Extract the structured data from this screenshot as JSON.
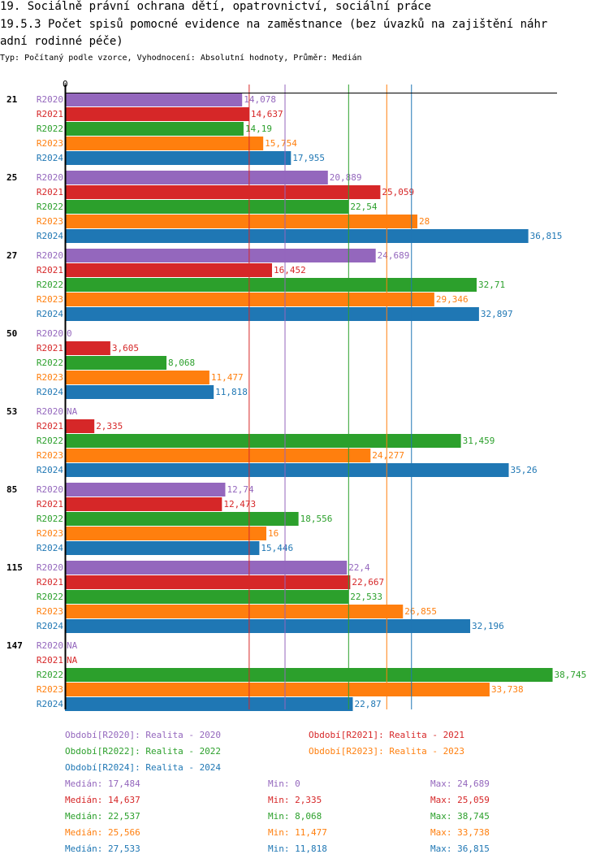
{
  "title_line1": "19. Sociálně právní ochrana dětí, opatrovnictví, sociální práce",
  "title_line2": "19.5.3 Počet spisů pomocné evidence na zaměstnance  (bez úvazků na zajištění náhr",
  "title_line3": "adní rodinné péče)",
  "subtitle": "Typ: Počítaný podle vzorce, Vyhodnocení: Absolutní hodnoty, Průměr: Medián",
  "chart_data": {
    "type": "bar",
    "orientation": "horizontal",
    "x_tick_labels": [
      "0"
    ],
    "xlim": [
      0,
      39
    ],
    "categories": [
      "21",
      "25",
      "27",
      "50",
      "53",
      "85",
      "115",
      "147"
    ],
    "series": [
      {
        "name": "R2020",
        "color": "#9467bd",
        "values": [
          14.078,
          20.889,
          24.689,
          0,
          null,
          12.74,
          22.4,
          null
        ],
        "labels": [
          "14,078",
          "20,889",
          "24,689",
          "0",
          "NA",
          "12,74",
          "22,4",
          "NA"
        ]
      },
      {
        "name": "R2021",
        "color": "#d62728",
        "values": [
          14.637,
          25.059,
          16.452,
          3.605,
          2.335,
          12.473,
          22.667,
          null
        ],
        "labels": [
          "14,637",
          "25,059",
          "16,452",
          "3,605",
          "2,335",
          "12,473",
          "22,667",
          "NA"
        ]
      },
      {
        "name": "R2022",
        "color": "#2ca02c",
        "values": [
          14.19,
          22.54,
          32.71,
          8.068,
          31.459,
          18.556,
          22.533,
          38.745
        ],
        "labels": [
          "14,19",
          "22,54",
          "32,71",
          "8,068",
          "31,459",
          "18,556",
          "22,533",
          "38,745"
        ]
      },
      {
        "name": "R2023",
        "color": "#ff7f0e",
        "values": [
          15.754,
          28,
          29.346,
          11.477,
          24.277,
          16,
          26.855,
          33.738
        ],
        "labels": [
          "15,754",
          "28",
          "29,346",
          "11,477",
          "24,277",
          "16",
          "26,855",
          "33,738"
        ]
      },
      {
        "name": "R2024",
        "color": "#1f77b4",
        "values": [
          17.955,
          36.815,
          32.897,
          11.818,
          35.26,
          15.446,
          32.196,
          22.87
        ],
        "labels": [
          "17,955",
          "36,815",
          "32,897",
          "11,818",
          "35,26",
          "15,446",
          "32,196",
          "22,87"
        ]
      }
    ],
    "median_lines": [
      17.484,
      14.637,
      22.537,
      25.566,
      27.533
    ],
    "legend": [
      {
        "text": "Období[R2020]: Realita - 2020",
        "color": "#9467bd"
      },
      {
        "text": "Období[R2021]: Realita - 2021",
        "color": "#d62728"
      },
      {
        "text": "Období[R2022]: Realita - 2022",
        "color": "#2ca02c"
      },
      {
        "text": "Období[R2023]: Realita - 2023",
        "color": "#ff7f0e"
      },
      {
        "text": "Období[R2024]: Realita - 2024",
        "color": "#1f77b4"
      }
    ],
    "legend_placement": "bottom",
    "stats": [
      {
        "median": "Medián: 17,484",
        "min": "Min: 0",
        "max": "Max: 24,689",
        "color": "#9467bd"
      },
      {
        "median": "Medián: 14,637",
        "min": "Min: 2,335",
        "max": "Max: 25,059",
        "color": "#d62728"
      },
      {
        "median": "Medián: 22,537",
        "min": "Min: 8,068",
        "max": "Max: 38,745",
        "color": "#2ca02c"
      },
      {
        "median": "Medián: 25,566",
        "min": "Min: 11,477",
        "max": "Max: 33,738",
        "color": "#ff7f0e"
      },
      {
        "median": "Medián: 27,533",
        "min": "Min: 11,818",
        "max": "Max: 36,815",
        "color": "#1f77b4"
      }
    ]
  }
}
